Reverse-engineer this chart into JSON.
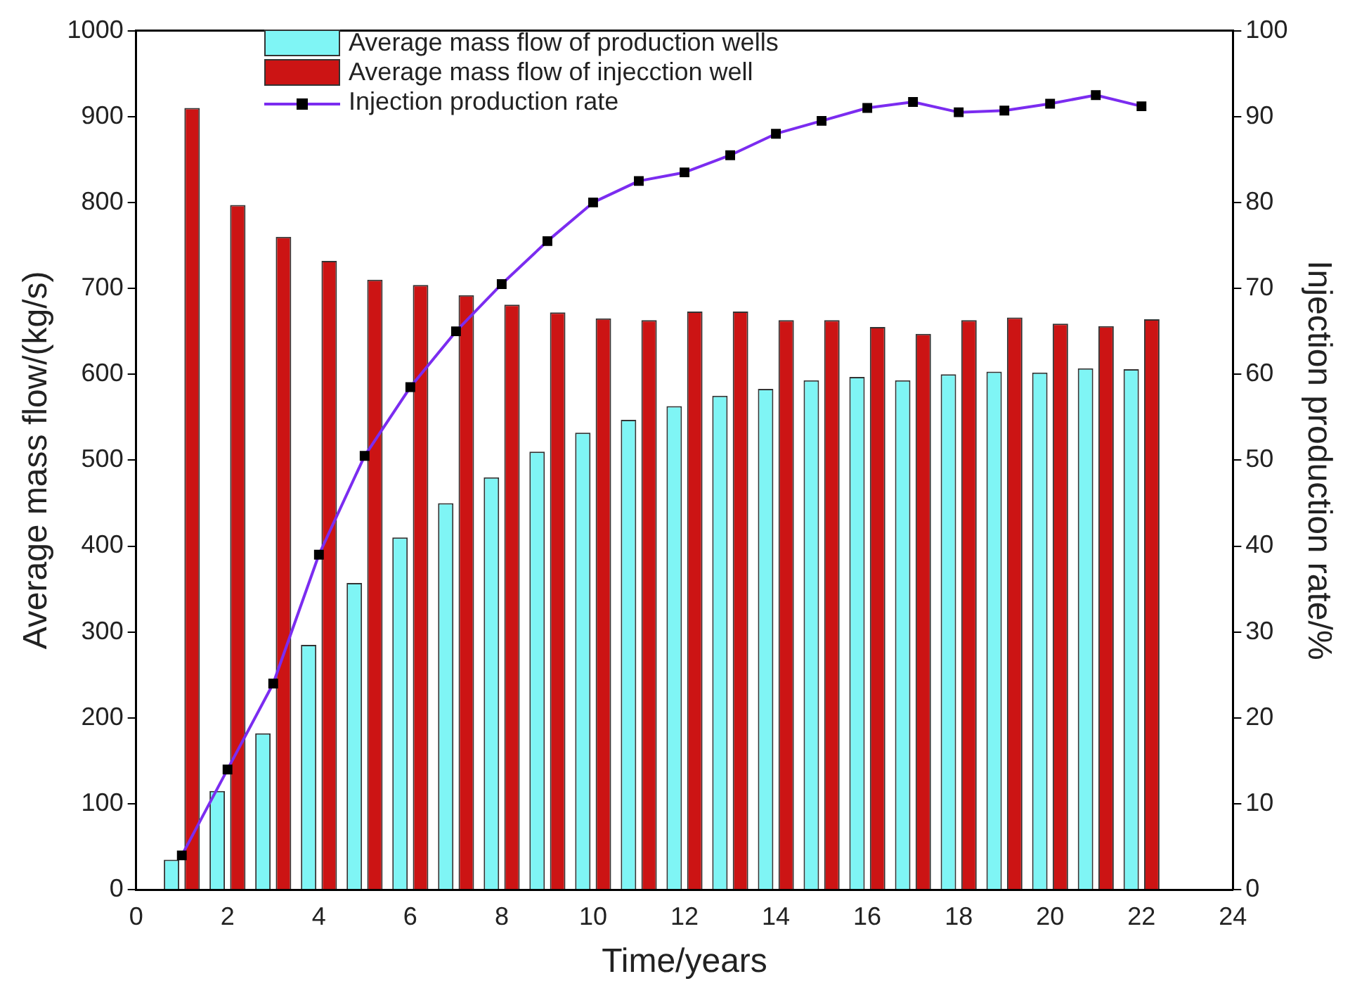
{
  "chart_data": {
    "type": "bar",
    "xlabel": "Time/years",
    "ylabel": "Average mass flow/(kg/s)",
    "y2label": "Injection production rate/%",
    "x": [
      1,
      2,
      3,
      4,
      5,
      6,
      7,
      8,
      9,
      10,
      11,
      12,
      13,
      14,
      15,
      16,
      17,
      18,
      19,
      20,
      21,
      22
    ],
    "series": [
      {
        "name": "Average mass flow of production wells",
        "color": "#7ff5f5",
        "values": [
          35,
          115,
          182,
          285,
          357,
          410,
          450,
          480,
          510,
          532,
          547,
          563,
          575,
          583,
          593,
          597,
          593,
          600,
          603,
          602,
          607,
          606
        ]
      },
      {
        "name": "Average mass flow of injecction well",
        "color": "#cc1414",
        "values": [
          910,
          797,
          760,
          732,
          710,
          704,
          692,
          681,
          672,
          665,
          663,
          673,
          673,
          663,
          663,
          655,
          647,
          663,
          666,
          659,
          656,
          664
        ]
      },
      {
        "name": "Injection production rate",
        "type": "line",
        "axis": "y2",
        "color": "#7b2cf0",
        "marker": "square",
        "values": [
          4,
          14,
          24,
          39,
          50.5,
          58.5,
          65,
          70.5,
          75.5,
          80,
          82.5,
          83.5,
          85.5,
          88,
          89.5,
          91,
          91.7,
          90.5,
          90.7,
          91.5,
          92.5,
          91.2
        ]
      }
    ],
    "xlim": [
      0,
      24
    ],
    "xticks": [
      0,
      2,
      4,
      6,
      8,
      10,
      12,
      14,
      16,
      18,
      20,
      22,
      24
    ],
    "ylim": [
      0,
      1000
    ],
    "yticks": [
      0,
      100,
      200,
      300,
      400,
      500,
      600,
      700,
      800,
      900,
      1000
    ],
    "y2lim": [
      0,
      100
    ],
    "y2ticks": [
      0,
      10,
      20,
      30,
      40,
      50,
      60,
      70,
      80,
      90,
      100
    ],
    "grid": false,
    "legend": "top left"
  }
}
